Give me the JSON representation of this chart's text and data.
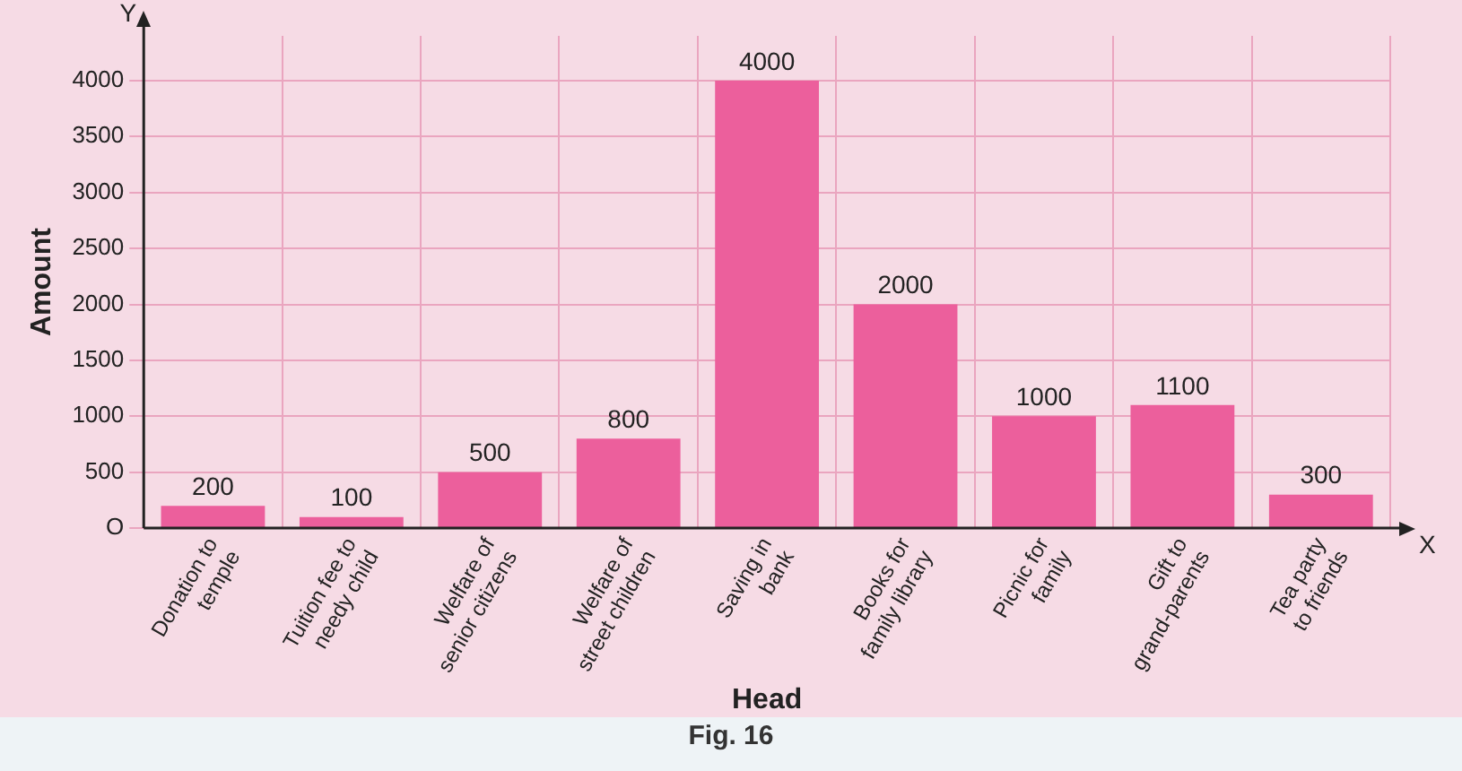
{
  "chart_data": {
    "type": "bar",
    "xlabel": "Head",
    "ylabel": "Amount",
    "categories": [
      "Donation to temple",
      "Tuition fee to needy child",
      "Welfare of senior citizens",
      "Welfare of street children",
      "Saving in bank",
      "Books for family library",
      "Picnic for family",
      "Gift to grand-parents",
      "Tea party to friends"
    ],
    "values": [
      200,
      100,
      500,
      800,
      4000,
      2000,
      1000,
      1100,
      300
    ],
    "color": "#ec5f9c",
    "ylim": [
      0,
      4400
    ],
    "yticks": [
      {
        "value": 0,
        "label": "O"
      },
      500,
      1000,
      1500,
      2000,
      2500,
      3000,
      3500,
      4000
    ],
    "grid": true,
    "data_labels": true,
    "annotations": [
      "Y",
      "X",
      "Fig. 16"
    ]
  }
}
